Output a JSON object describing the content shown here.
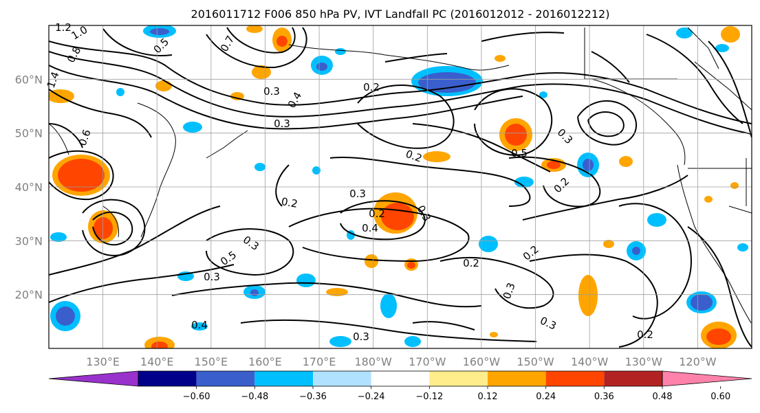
{
  "title": "2016011712 F006 850 hPa PV, IVT Landfall PC (2016012012 - 2016012212)",
  "map": {
    "lon_range": [
      120,
      250
    ],
    "lat_range": [
      10,
      70
    ],
    "lon_ticks": [
      "130°E",
      "140°E",
      "150°E",
      "160°E",
      "170°E",
      "180°W",
      "170°W",
      "160°W",
      "150°W",
      "140°W",
      "130°W",
      "120°W"
    ],
    "lat_ticks": [
      "20°N",
      "30°N",
      "40°N",
      "50°N",
      "60°N"
    ],
    "grid": true,
    "contour_labels": [
      "1.0",
      "1.2",
      "0.8",
      "1.4",
      "0.6",
      "0.7",
      "0.5",
      "0.3",
      "0.2",
      "0.4",
      "0.3",
      "0.2",
      "0.3",
      "0.2",
      "0.3",
      "0.5",
      "0.2",
      "0.3",
      "0.2",
      "0.4",
      "0.3",
      "0.3",
      "0.2",
      "0.2",
      "0.3",
      "0.5",
      "0.3",
      "0.2",
      "0.4",
      "0.3"
    ]
  },
  "colorbar": {
    "ticks": [
      "−0.60",
      "−0.48",
      "−0.36",
      "−0.24",
      "−0.12",
      "0.12",
      "0.24",
      "0.36",
      "0.48",
      "0.60"
    ],
    "colors": [
      "#9932cc",
      "#00008b",
      "#3a5fcd",
      "#00bfff",
      "#b0e2ff",
      "#ffffff",
      "#ffec8b",
      "#ffa500",
      "#ff4500",
      "#b22222",
      "#ff82ab"
    ],
    "extend": "both"
  }
}
